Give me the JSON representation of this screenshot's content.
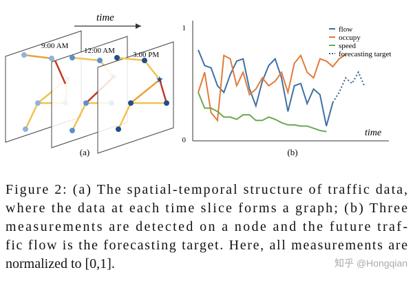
{
  "diagram": {
    "axis_label": "time",
    "slices": [
      "9:00 AM",
      "12:00 AM",
      "3:00 PM"
    ],
    "caption": "(a)"
  },
  "chart_data": {
    "type": "line",
    "xlabel": "time",
    "caption": "(b)",
    "categories": [
      null,
      null,
      null,
      null,
      null,
      null,
      null,
      null,
      null,
      null,
      null,
      null,
      null,
      null,
      null,
      null,
      null,
      null,
      null,
      null,
      null,
      null,
      null,
      null,
      null,
      null,
      null
    ],
    "ylim": [
      0,
      1
    ],
    "yticks": [
      0,
      1
    ],
    "grid": false,
    "legend": "top-right",
    "series": [
      {
        "name": "flow",
        "color": "#3d6fa6",
        "style": "solid",
        "values": [
          0.8,
          0.66,
          0.64,
          0.48,
          0.42,
          0.58,
          0.7,
          0.72,
          0.45,
          0.3,
          0.52,
          0.66,
          0.72,
          0.55,
          0.25,
          0.48,
          0.5,
          0.32,
          0.45,
          0.4,
          0.12,
          0.33,
          null,
          null,
          null,
          null,
          null
        ]
      },
      {
        "name": "occupy",
        "color": "#e07b39",
        "style": "solid",
        "values": [
          0.42,
          0.6,
          0.24,
          0.17,
          0.75,
          0.72,
          0.48,
          0.6,
          0.4,
          0.45,
          0.55,
          0.48,
          0.52,
          0.6,
          0.42,
          0.68,
          0.75,
          0.6,
          0.55,
          0.72,
          0.7,
          0.65,
          0.72,
          0.76,
          null,
          null,
          null
        ]
      },
      {
        "name": "speed",
        "color": "#6aa84f",
        "style": "solid",
        "values": [
          0.42,
          0.28,
          0.28,
          0.25,
          0.2,
          0.2,
          0.18,
          0.22,
          0.22,
          0.17,
          0.17,
          0.2,
          0.18,
          0.15,
          0.13,
          0.13,
          0.12,
          0.12,
          0.1,
          0.08,
          0.07,
          null,
          null,
          null,
          null,
          null,
          null
        ]
      },
      {
        "name": "forecasting target",
        "color": "#2f5f8f",
        "style": "dotted",
        "values": [
          null,
          null,
          null,
          null,
          null,
          null,
          null,
          null,
          null,
          null,
          null,
          null,
          null,
          null,
          null,
          null,
          null,
          null,
          null,
          null,
          null,
          0.33,
          0.42,
          0.55,
          0.5,
          0.6,
          0.47
        ]
      }
    ]
  },
  "caption_lines": [
    "Figure 2: (a) The spatial-temporal structure of traffic data,",
    "where the data at each time slice forms a graph; (b) Three",
    "measurements are detected on a node and the future traf-",
    "fic flow is the forecasting target. Here, all measurements are",
    "normalized to [0,1]."
  ],
  "watermark": "知乎 @Hongqian"
}
